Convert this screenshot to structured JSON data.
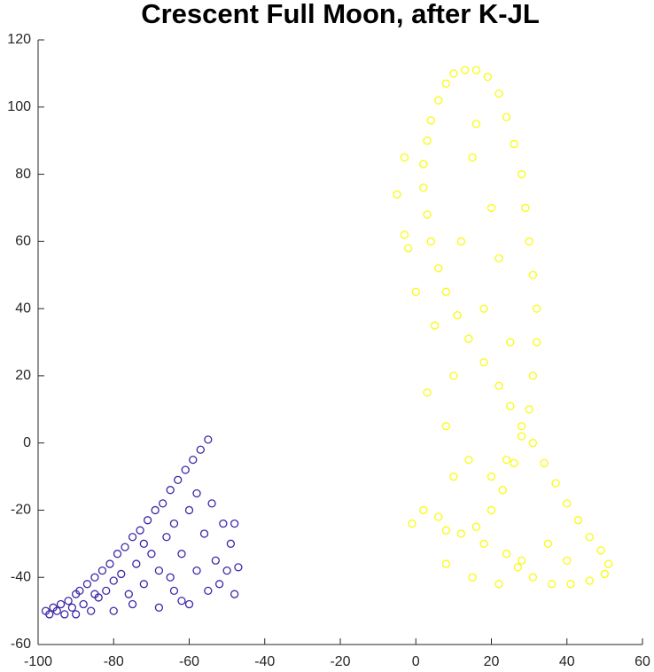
{
  "chart_data": {
    "type": "scatter",
    "title": "Crescent Full Moon, after K-JL",
    "xlim": [
      -100,
      60
    ],
    "xticks": [
      -100,
      -80,
      -60,
      -40,
      -20,
      0,
      20,
      40,
      60
    ],
    "ylim": [
      -60,
      120
    ],
    "yticks": [
      -60,
      -40,
      -20,
      0,
      20,
      40,
      60,
      80,
      100,
      120
    ],
    "series": [
      {
        "color": "#3e26a8",
        "x": [
          -98,
          -97,
          -96,
          -95,
          -94,
          -93,
          -92,
          -91,
          -90,
          -90,
          -89,
          -88,
          -87,
          -86,
          -85,
          -84,
          -83,
          -82,
          -81,
          -80,
          -80,
          -79,
          -78,
          -77,
          -76,
          -75,
          -74,
          -73,
          -72,
          -71,
          -70,
          -69,
          -68,
          -68,
          -67,
          -66,
          -65,
          -64,
          -64,
          -63,
          -62,
          -61,
          -60,
          -60,
          -59,
          -58,
          -58,
          -57,
          -56,
          -55,
          -55,
          -54,
          -53,
          -52,
          -51,
          -50,
          -49,
          -48,
          -48,
          -47,
          -72,
          -65,
          -85,
          -75,
          -62
        ],
        "values": [
          -50,
          -51,
          -49,
          -50,
          -48,
          -51,
          -47,
          -49,
          -45,
          -51,
          -44,
          -48,
          -42,
          -50,
          -40,
          -46,
          -38,
          -44,
          -36,
          -50,
          -41,
          -33,
          -39,
          -31,
          -45,
          -28,
          -36,
          -26,
          -42,
          -23,
          -33,
          -20,
          -49,
          -38,
          -18,
          -28,
          -14,
          -44,
          -24,
          -11,
          -33,
          -8,
          -20,
          -48,
          -5,
          -38,
          -15,
          -2,
          -27,
          1,
          -44,
          -18,
          -35,
          -42,
          -24,
          -38,
          -30,
          -45,
          -24,
          -37,
          -30,
          -40,
          -45,
          -48,
          -47
        ]
      },
      {
        "color": "#f9fb0e",
        "x": [
          13,
          10,
          8,
          6,
          4,
          3,
          2,
          2,
          3,
          4,
          6,
          8,
          11,
          14,
          18,
          22,
          25,
          28,
          31,
          34,
          37,
          40,
          43,
          46,
          49,
          51,
          50,
          46,
          41,
          36,
          31,
          27,
          24,
          16,
          19,
          22,
          24,
          26,
          28,
          29,
          30,
          31,
          32,
          32,
          31,
          30,
          28,
          26,
          23,
          20,
          16,
          12,
          8,
          -3,
          -5,
          -2,
          0,
          5,
          3,
          8,
          10,
          -1,
          2,
          14,
          18,
          20,
          22,
          15,
          25,
          12,
          10,
          8,
          15,
          22,
          28,
          35,
          40,
          18,
          6,
          24,
          -3,
          16,
          20
        ],
        "values": [
          111,
          110,
          107,
          102,
          96,
          90,
          83,
          76,
          68,
          60,
          52,
          45,
          38,
          31,
          24,
          17,
          11,
          5,
          0,
          -6,
          -12,
          -18,
          -23,
          -28,
          -32,
          -36,
          -39,
          -41,
          -42,
          -42,
          -40,
          -37,
          -33,
          111,
          109,
          104,
          97,
          89,
          80,
          70,
          60,
          50,
          40,
          30,
          20,
          10,
          2,
          -6,
          -14,
          -20,
          -25,
          -27,
          -26,
          85,
          74,
          58,
          45,
          35,
          15,
          5,
          -10,
          -24,
          -20,
          -5,
          40,
          70,
          55,
          85,
          30,
          60,
          20,
          -36,
          -40,
          -42,
          -35,
          -30,
          -35,
          -30,
          -22,
          -5,
          62,
          95,
          -10
        ]
      }
    ]
  }
}
